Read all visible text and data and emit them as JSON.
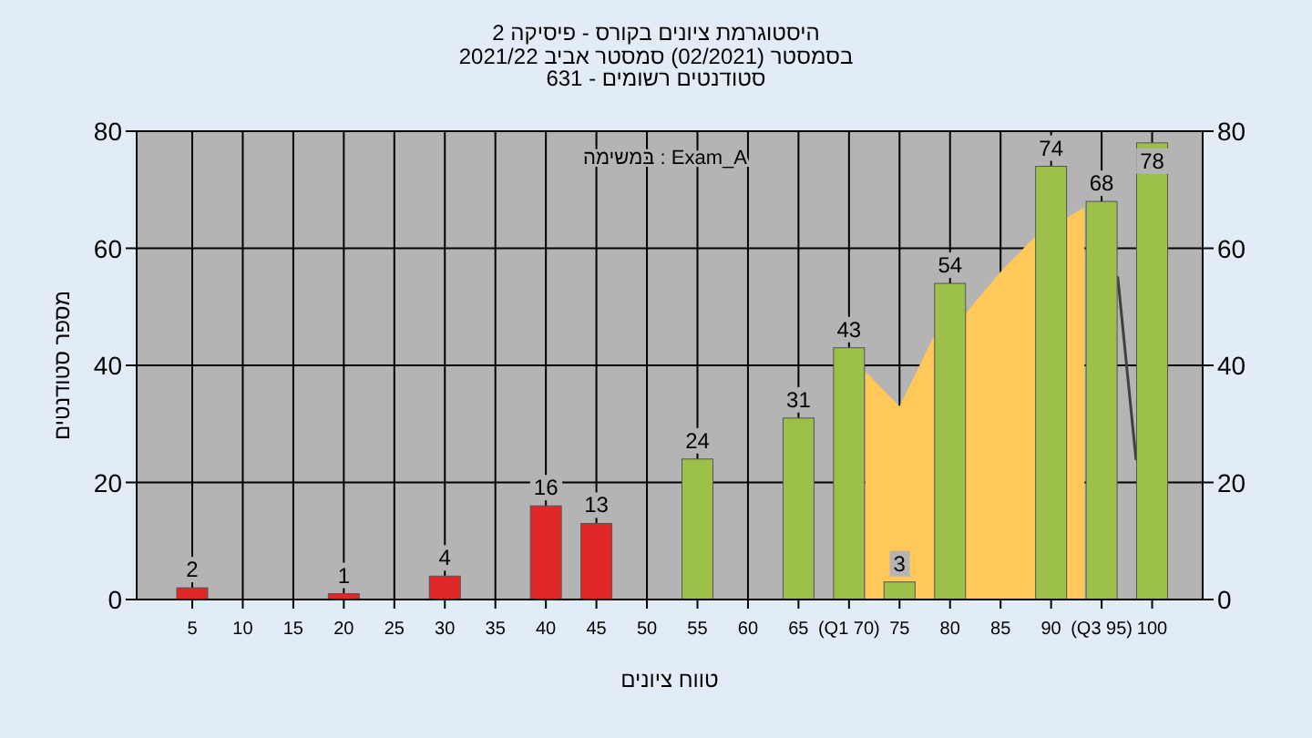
{
  "chart_data": {
    "type": "bar",
    "title": "היסטוגרמת ציונים בקורס - פיסיקה 2",
    "subtitle": [
      "בסמסטר  (02/2021)  סמסטר אביב 2021/22",
      "סטודנטים רשומים - 631"
    ],
    "xlabel": "טווח ציונים",
    "ylabel": "מספר סטודנטים",
    "annotations": [
      "Exam_A : במשימה"
    ],
    "x": [
      5,
      10,
      15,
      20,
      25,
      30,
      35,
      40,
      45,
      50,
      55,
      60,
      65,
      70,
      75,
      80,
      85,
      90,
      95,
      100
    ],
    "series": [
      {
        "values": [
          2,
          null,
          null,
          1,
          null,
          4,
          null,
          16,
          13,
          null,
          24,
          null,
          31,
          43,
          3,
          54,
          null,
          74,
          68,
          78
        ],
        "value_labels": [
          "2",
          null,
          null,
          "1",
          null,
          "4",
          null,
          "16",
          "13",
          null,
          "24",
          null,
          "31",
          "43",
          "3",
          "54",
          null,
          "74",
          "68",
          "78"
        ],
        "colors": [
          "#e02828",
          null,
          null,
          "#e02828",
          null,
          "#e02828",
          null,
          "#e02828",
          "#e02828",
          null,
          "#9cc04a",
          null,
          "#9cc04a",
          "#9cc04a",
          "#9cc04a",
          "#9cc04a",
          null,
          "#9cc04a",
          "#9cc04a",
          "#9cc04a"
        ]
      },
      {
        "type": "area",
        "color": "#ffc858",
        "x": [
          71.6,
          75,
          78.4,
          81.6,
          85,
          88.4,
          93.3
        ],
        "values": [
          39,
          33,
          45,
          49,
          56,
          62,
          67
        ]
      },
      {
        "type": "line",
        "color": "#404040",
        "x": [
          96.6,
          98.4
        ],
        "values": [
          55,
          24
        ]
      }
    ],
    "xlim": [
      -0.5,
      105
    ],
    "xticks": [
      5,
      10,
      15,
      20,
      25,
      30,
      35,
      40,
      45,
      50,
      55,
      60,
      65,
      {
        "value": 70,
        "label": "(Q1 70)"
      },
      75,
      80,
      85,
      90,
      {
        "value": 95,
        "label": "(Q3 95)"
      },
      100
    ],
    "ylim": [
      0,
      80
    ],
    "yticks": [
      0,
      20,
      40,
      60,
      80
    ],
    "y2lim": [
      0,
      80
    ],
    "y2ticks": [
      0,
      20,
      40,
      60,
      80
    ],
    "grid": true
  }
}
